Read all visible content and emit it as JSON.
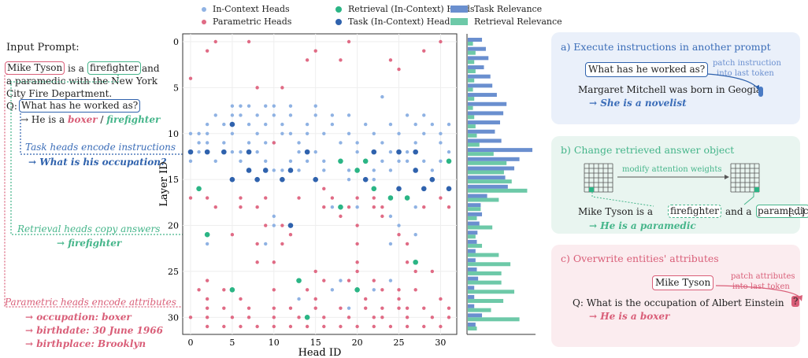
{
  "legend": {
    "in_context": "In-Context Heads",
    "parametric": "Parametric Heads",
    "retrieval": "Retrieval (In-Context) Heads",
    "task": "Task (In-Context) Heads",
    "task_rel": "Task Relevance",
    "retr_rel": "Retrieval Relevance"
  },
  "colors": {
    "in_context": "#8fb2e3",
    "parametric": "#e06b85",
    "retrieval": "#2bb585",
    "task": "#2f62ad",
    "task_bar": "#6a8fcf",
    "retr_bar": "#6dc9a8",
    "blue_text": "#3b6db8",
    "green_text": "#45b58a",
    "red_text": "#d95e78"
  },
  "left": {
    "input_prompt": "Input Prompt:",
    "mike": "Mike Tyson",
    "is_a": "is a",
    "firefighter": "firefighter",
    "and": "and",
    "line2": "a paramedic with the New York",
    "line3": "City Fire Department.",
    "q": "Q:",
    "question": "What has he worked as?",
    "answer_pre": "→ He is a",
    "boxer": "boxer",
    "slash": "/",
    "firefighter2": "firefighter",
    "task_note": "Task heads encode instructions",
    "task_out": "→ What is his occupation?",
    "retr_note": "Retrieval heads copy answers",
    "retr_out": "→ firefighter",
    "param_note": "Parametric heads encode attributes",
    "attr1": "→ occupation: boxer",
    "attr2": "→ birthdate: 30 June 1966",
    "attr3": "→ birthplace: Brooklyn"
  },
  "axis": {
    "ylabel": "Layer ID",
    "xlabel": "Head ID",
    "xticks": [
      "0",
      "5",
      "10",
      "15",
      "20",
      "25",
      "30"
    ],
    "yticks": [
      "0",
      "5",
      "10",
      "15",
      "20",
      "25",
      "30"
    ]
  },
  "panels": {
    "a": {
      "title": "a) Execute instructions in another prompt",
      "question": "What has he worked as?",
      "note1": "patch instruction",
      "note2": "into last token",
      "sentence": "Margaret Mitchell was born in Geogia",
      "result": "→ She is a novelist"
    },
    "b": {
      "title": "b) Change retrieved answer object",
      "note": "modify attention weights",
      "s1": "Mike Tyson is a",
      "w1": "firefighter",
      "s2": "and a",
      "w2": "paramedic",
      "s3": "[...]",
      "result": "→ He is a paramedic"
    },
    "c": {
      "title": "c) Overwrite entities' attributes",
      "entity": "Mike Tyson",
      "note1": "patch attributes",
      "note2": "into last token",
      "sentence": "Q: What is the occupation of Albert Einstein",
      "mark": "?",
      "result": "→ He is a boxer"
    }
  },
  "chart_data": {
    "type": "scatter",
    "title": "",
    "xlabel": "Head ID",
    "ylabel": "Layer ID",
    "xlim": [
      0,
      31
    ],
    "ylim": [
      0,
      31
    ],
    "series": [
      {
        "name": "In-Context Heads",
        "points": [
          [
            23,
            6
          ],
          [
            5,
            7
          ],
          [
            6,
            7
          ],
          [
            7,
            7
          ],
          [
            9,
            7
          ],
          [
            10,
            7
          ],
          [
            12,
            7
          ],
          [
            15,
            7
          ],
          [
            3,
            8
          ],
          [
            5,
            8
          ],
          [
            6,
            8
          ],
          [
            8,
            8
          ],
          [
            10,
            8
          ],
          [
            12,
            8
          ],
          [
            15,
            8
          ],
          [
            17,
            8
          ],
          [
            19,
            8
          ],
          [
            26,
            8
          ],
          [
            28,
            8
          ],
          [
            2,
            9
          ],
          [
            4,
            9
          ],
          [
            7,
            9
          ],
          [
            9,
            9
          ],
          [
            11,
            9
          ],
          [
            14,
            9
          ],
          [
            17,
            9
          ],
          [
            21,
            9
          ],
          [
            24,
            9
          ],
          [
            27,
            9
          ],
          [
            29,
            9
          ],
          [
            31,
            9
          ],
          [
            0,
            10
          ],
          [
            1,
            10
          ],
          [
            2,
            10
          ],
          [
            5,
            10
          ],
          [
            8,
            10
          ],
          [
            11,
            10
          ],
          [
            12,
            10
          ],
          [
            14,
            10
          ],
          [
            16,
            10
          ],
          [
            19,
            10
          ],
          [
            22,
            10
          ],
          [
            25,
            10
          ],
          [
            28,
            10
          ],
          [
            30,
            10
          ],
          [
            1,
            11
          ],
          [
            2,
            11
          ],
          [
            4,
            11
          ],
          [
            7,
            11
          ],
          [
            9,
            11
          ],
          [
            10,
            11
          ],
          [
            13,
            11
          ],
          [
            18,
            11
          ],
          [
            20,
            11
          ],
          [
            23,
            11
          ],
          [
            27,
            11
          ],
          [
            30,
            11
          ],
          [
            1,
            12
          ],
          [
            5,
            12
          ],
          [
            6,
            12
          ],
          [
            8,
            12
          ],
          [
            13,
            12
          ],
          [
            15,
            12
          ],
          [
            20,
            12
          ],
          [
            22,
            12
          ],
          [
            24,
            12
          ],
          [
            26,
            12
          ],
          [
            31,
            12
          ],
          [
            0,
            13
          ],
          [
            3,
            13
          ],
          [
            6,
            13
          ],
          [
            9,
            13
          ],
          [
            12,
            13
          ],
          [
            14,
            13
          ],
          [
            16,
            13
          ],
          [
            21,
            13
          ],
          [
            23,
            13
          ],
          [
            25,
            13
          ],
          [
            26,
            13
          ],
          [
            28,
            13
          ],
          [
            30,
            13
          ],
          [
            10,
            14
          ],
          [
            11,
            14
          ],
          [
            13,
            14
          ],
          [
            16,
            14
          ],
          [
            19,
            14
          ],
          [
            22,
            14
          ],
          [
            24,
            14
          ],
          [
            29,
            14
          ],
          [
            15,
            15
          ],
          [
            19,
            15
          ],
          [
            22,
            15
          ],
          [
            17,
            18
          ],
          [
            20,
            18
          ],
          [
            27,
            18
          ],
          [
            10,
            19
          ],
          [
            24,
            19
          ],
          [
            10,
            20
          ],
          [
            25,
            20
          ],
          [
            27,
            21
          ],
          [
            2,
            22
          ],
          [
            9,
            22
          ],
          [
            24,
            22
          ],
          [
            18,
            26
          ],
          [
            24,
            26
          ],
          [
            17,
            27
          ],
          [
            22,
            27
          ],
          [
            13,
            28
          ],
          [
            19,
            29
          ]
        ]
      },
      {
        "name": "Parametric Heads",
        "points": [
          [
            3,
            0
          ],
          [
            7,
            0
          ],
          [
            19,
            0
          ],
          [
            30,
            0
          ],
          [
            2,
            1
          ],
          [
            15,
            1
          ],
          [
            28,
            1
          ],
          [
            14,
            2
          ],
          [
            18,
            2
          ],
          [
            24,
            2
          ],
          [
            25,
            3
          ],
          [
            0,
            4
          ],
          [
            8,
            5
          ],
          [
            11,
            5
          ],
          [
            10,
            11
          ],
          [
            16,
            16
          ],
          [
            0,
            17
          ],
          [
            2,
            17
          ],
          [
            6,
            17
          ],
          [
            9,
            17
          ],
          [
            13,
            17
          ],
          [
            17,
            17
          ],
          [
            20,
            17
          ],
          [
            22,
            17
          ],
          [
            30,
            17
          ],
          [
            3,
            18
          ],
          [
            6,
            18
          ],
          [
            8,
            18
          ],
          [
            16,
            18
          ],
          [
            19,
            18
          ],
          [
            22,
            18
          ],
          [
            23,
            18
          ],
          [
            28,
            18
          ],
          [
            31,
            18
          ],
          [
            18,
            19
          ],
          [
            23,
            19
          ],
          [
            9,
            20
          ],
          [
            11,
            20
          ],
          [
            20,
            20
          ],
          [
            5,
            21
          ],
          [
            12,
            21
          ],
          [
            25,
            21
          ],
          [
            8,
            22
          ],
          [
            11,
            22
          ],
          [
            20,
            22
          ],
          [
            26,
            22
          ],
          [
            8,
            24
          ],
          [
            10,
            24
          ],
          [
            20,
            24
          ],
          [
            26,
            24
          ],
          [
            15,
            25
          ],
          [
            20,
            25
          ],
          [
            27,
            25
          ],
          [
            29,
            25
          ],
          [
            2,
            26
          ],
          [
            13,
            26
          ],
          [
            16,
            26
          ],
          [
            19,
            26
          ],
          [
            22,
            26
          ],
          [
            1,
            27
          ],
          [
            4,
            27
          ],
          [
            10,
            27
          ],
          [
            14,
            27
          ],
          [
            20,
            27
          ],
          [
            23,
            27
          ],
          [
            25,
            27
          ],
          [
            27,
            27
          ],
          [
            2,
            28
          ],
          [
            6,
            28
          ],
          [
            15,
            28
          ],
          [
            21,
            28
          ],
          [
            25,
            28
          ],
          [
            30,
            28
          ],
          [
            2,
            29
          ],
          [
            4,
            29
          ],
          [
            7,
            29
          ],
          [
            10,
            29
          ],
          [
            12,
            29
          ],
          [
            15,
            29
          ],
          [
            18,
            29
          ],
          [
            21,
            29
          ],
          [
            23,
            29
          ],
          [
            25,
            29
          ],
          [
            26,
            29
          ],
          [
            28,
            29
          ],
          [
            31,
            29
          ],
          [
            0,
            30
          ],
          [
            2,
            30
          ],
          [
            5,
            30
          ],
          [
            7,
            30
          ],
          [
            10,
            30
          ],
          [
            13,
            30
          ],
          [
            16,
            30
          ],
          [
            19,
            30
          ],
          [
            22,
            30
          ],
          [
            23,
            30
          ],
          [
            26,
            30
          ],
          [
            29,
            30
          ],
          [
            31,
            30
          ],
          [
            2,
            31
          ],
          [
            4,
            31
          ],
          [
            6,
            31
          ],
          [
            8,
            31
          ],
          [
            10,
            31
          ],
          [
            12,
            31
          ],
          [
            14,
            31
          ],
          [
            16,
            31
          ],
          [
            18,
            31
          ],
          [
            20,
            31
          ],
          [
            22,
            31
          ],
          [
            24,
            31
          ],
          [
            26,
            31
          ],
          [
            28,
            31
          ],
          [
            30,
            31
          ]
        ]
      },
      {
        "name": "Retrieval (In-Context) Heads",
        "points": [
          [
            18,
            13
          ],
          [
            21,
            13
          ],
          [
            31,
            13
          ],
          [
            20,
            14
          ],
          [
            1,
            16
          ],
          [
            22,
            16
          ],
          [
            26,
            17
          ],
          [
            24,
            17
          ],
          [
            18,
            18
          ],
          [
            2,
            21
          ],
          [
            27,
            24
          ],
          [
            13,
            26
          ],
          [
            5,
            27
          ],
          [
            20,
            27
          ],
          [
            14,
            30
          ]
        ]
      },
      {
        "name": "Task (In-Context) Heads",
        "points": [
          [
            5,
            9
          ],
          [
            0,
            12
          ],
          [
            2,
            12
          ],
          [
            4,
            12
          ],
          [
            7,
            12
          ],
          [
            14,
            12
          ],
          [
            22,
            12
          ],
          [
            25,
            12
          ],
          [
            27,
            12
          ],
          [
            7,
            14
          ],
          [
            9,
            14
          ],
          [
            12,
            14
          ],
          [
            27,
            14
          ],
          [
            5,
            15
          ],
          [
            8,
            15
          ],
          [
            11,
            15
          ],
          [
            15,
            15
          ],
          [
            21,
            15
          ],
          [
            29,
            15
          ],
          [
            25,
            16
          ],
          [
            28,
            16
          ],
          [
            31,
            16
          ],
          [
            12,
            20
          ]
        ]
      }
    ],
    "relevance": {
      "layers": [
        0,
        1,
        2,
        3,
        4,
        5,
        6,
        7,
        8,
        9,
        10,
        11,
        12,
        13,
        14,
        15,
        16,
        17,
        18,
        19,
        20,
        21,
        22,
        23,
        24,
        25,
        26,
        27,
        28,
        29,
        30,
        31
      ],
      "task": [
        0.22,
        0.28,
        0.32,
        0.25,
        0.35,
        0.38,
        0.45,
        0.6,
        0.55,
        0.5,
        0.42,
        0.52,
        1.0,
        0.8,
        0.72,
        0.58,
        0.62,
        0.3,
        0.2,
        0.22,
        0.18,
        0.15,
        0.14,
        0.12,
        0.12,
        0.14,
        0.16,
        0.1,
        0.1,
        0.1,
        0.22,
        0.12
      ],
      "retrieval": [
        0.08,
        0.12,
        0.1,
        0.12,
        0.1,
        0.08,
        0.1,
        0.08,
        0.1,
        0.12,
        0.14,
        0.18,
        0.4,
        0.6,
        0.56,
        0.68,
        0.92,
        0.48,
        0.2,
        0.14,
        0.38,
        0.12,
        0.22,
        0.48,
        0.66,
        0.52,
        0.52,
        0.72,
        0.55,
        0.36,
        0.8,
        0.14
      ]
    }
  }
}
